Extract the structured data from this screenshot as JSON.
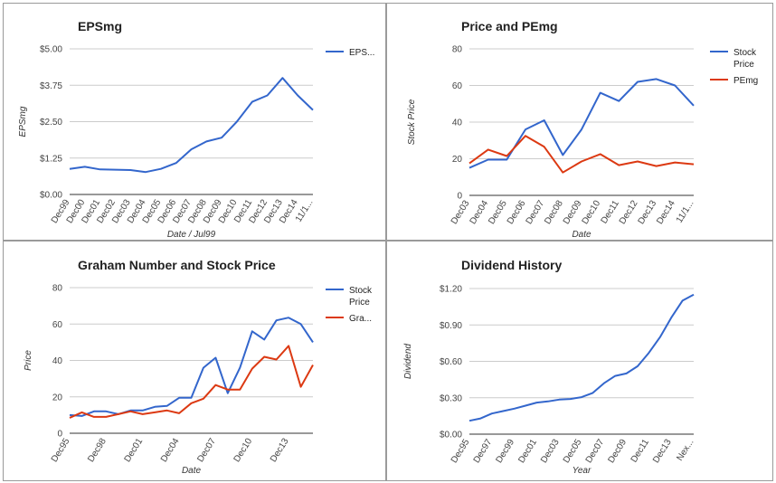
{
  "chart_data": [
    {
      "type": "line",
      "title": "EPSmg",
      "xlabel": "Date / Jul99",
      "ylabel": "EPSmg",
      "ylim": [
        0,
        5
      ],
      "yticks": [
        "$0.00",
        "$1.25",
        "$2.50",
        "$3.75",
        "$5.00"
      ],
      "yticks_values": [
        0,
        1.25,
        2.5,
        3.75,
        5
      ],
      "categories": [
        "Dec99",
        "Dec00",
        "Dec01",
        "Dec02",
        "Dec03",
        "Dec04",
        "Dec05",
        "Dec06",
        "Dec07",
        "Dec08",
        "Dec09",
        "Dec10",
        "Dec11",
        "Dec12",
        "Dec13",
        "Dec14",
        "11/1..."
      ],
      "series": [
        {
          "name": "EPS...",
          "color": "#3366cc",
          "values": [
            0.88,
            0.95,
            0.86,
            0.85,
            0.84,
            0.77,
            0.88,
            1.08,
            1.55,
            1.82,
            1.95,
            2.5,
            3.18,
            3.4,
            4.0,
            3.4,
            2.9
          ]
        }
      ],
      "legend": "right",
      "grid": true
    },
    {
      "type": "line",
      "title": "Price and PEmg",
      "xlabel": "Date",
      "ylabel": "Stock Price",
      "ylim": [
        0,
        80
      ],
      "yticks": [
        "0",
        "20",
        "40",
        "60",
        "80"
      ],
      "yticks_values": [
        0,
        20,
        40,
        60,
        80
      ],
      "categories": [
        "Dec03",
        "Dec04",
        "Dec05",
        "Dec06",
        "Dec07",
        "Dec08",
        "Dec09",
        "Dec10",
        "Dec11",
        "Dec12",
        "Dec13",
        "Dec14",
        "11/1..."
      ],
      "series": [
        {
          "name": "Stock Price",
          "color": "#3366cc",
          "values": [
            15,
            19.5,
            19.5,
            36,
            41,
            22,
            36,
            56,
            51.5,
            62,
            63.5,
            60,
            49
          ]
        },
        {
          "name": "PEmg",
          "color": "#dc3912",
          "values": [
            17.5,
            25,
            21.5,
            32.5,
            26.5,
            12.5,
            18.5,
            22.5,
            16.5,
            18.5,
            16,
            18,
            17
          ]
        }
      ],
      "legend": "right",
      "grid": true
    },
    {
      "type": "line",
      "title": "Graham Number and Stock Price",
      "xlabel": "Date",
      "ylabel": "Price",
      "ylim": [
        0,
        80
      ],
      "yticks": [
        "0",
        "20",
        "40",
        "60",
        "80"
      ],
      "yticks_values": [
        0,
        20,
        40,
        60,
        80
      ],
      "xticks": [
        "Dec95",
        "Dec98",
        "Dec01",
        "Dec04",
        "Dec07",
        "Dec10",
        "Dec13"
      ],
      "xticks_index": [
        0,
        3,
        6,
        9,
        12,
        15,
        18
      ],
      "point_count": 21,
      "series": [
        {
          "name": "Stock Price",
          "color": "#3366cc",
          "values": [
            10,
            9.5,
            12,
            12,
            10.5,
            12.5,
            12.5,
            14.5,
            15,
            19.5,
            19.5,
            36,
            41.5,
            22,
            36,
            56,
            51.5,
            62,
            63.5,
            60,
            50
          ]
        },
        {
          "name": "Gra...",
          "color": "#dc3912",
          "values": [
            8.5,
            11.5,
            9,
            9,
            10.5,
            12,
            10.5,
            11.5,
            12.5,
            11,
            16.5,
            19,
            26.5,
            24,
            24,
            35.5,
            42,
            40.5,
            48,
            25.5,
            37.5
          ]
        }
      ],
      "legend": "right",
      "grid": true
    },
    {
      "type": "line",
      "title": "Dividend History",
      "xlabel": "Year",
      "ylabel": "Dividend",
      "ylim": [
        0,
        1.2
      ],
      "yticks": [
        "$0.00",
        "$0.30",
        "$0.60",
        "$0.90",
        "$1.20"
      ],
      "yticks_values": [
        0,
        0.3,
        0.6,
        0.9,
        1.2
      ],
      "xticks": [
        "Dec95",
        "Dec97",
        "Dec99",
        "Dec01",
        "Dec03",
        "Dec05",
        "Dec07",
        "Dec09",
        "Dec11",
        "Dec13",
        "Nex..."
      ],
      "xticks_index": [
        0,
        2,
        4,
        6,
        8,
        10,
        12,
        14,
        16,
        18,
        20
      ],
      "point_count": 21,
      "series": [
        {
          "name": "",
          "color": "#3366cc",
          "values": [
            0.11,
            0.13,
            0.17,
            0.19,
            0.21,
            0.235,
            0.26,
            0.27,
            0.285,
            0.29,
            0.305,
            0.34,
            0.42,
            0.48,
            0.5,
            0.56,
            0.67,
            0.8,
            0.96,
            1.1,
            1.15
          ]
        }
      ],
      "legend": "none",
      "grid": true
    }
  ]
}
